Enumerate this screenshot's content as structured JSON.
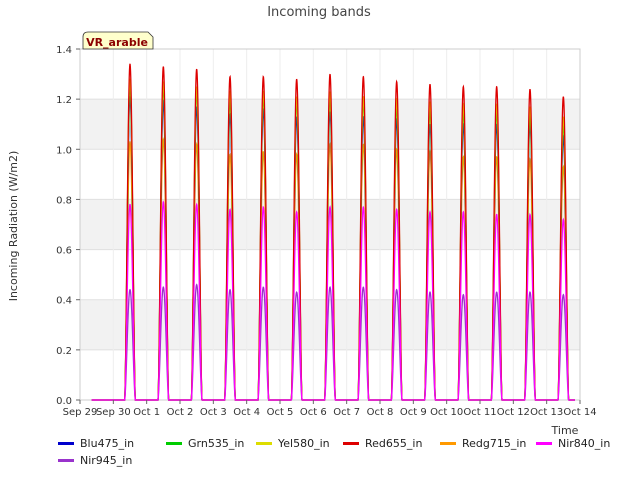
{
  "chart_data": {
    "type": "line",
    "title": "Incoming bands",
    "xlabel": "Time",
    "ylabel": "Incoming Radiation (W/m2)",
    "annotation": "VR_arable",
    "x_ticks": [
      "Sep 29",
      "Sep 30",
      "Oct 1",
      "Oct 2",
      "Oct 3",
      "Oct 4",
      "Oct 5",
      "Oct 6",
      "Oct 7",
      "Oct 8",
      "Oct 9",
      "Oct 10",
      "Oct 11",
      "Oct 12",
      "Oct 13",
      "Oct 14"
    ],
    "y_ticks": [
      "0.0",
      "0.2",
      "0.4",
      "0.6",
      "0.8",
      "1.0",
      "1.2",
      "1.4"
    ],
    "xlim": [
      "Sep 29",
      "Oct 14"
    ],
    "ylim": [
      0,
      1.4
    ],
    "grid": "horizontal bands",
    "legend_position": "bottom",
    "day_peak_dates": [
      "Sep 30",
      "Oct 1",
      "Oct 2",
      "Oct 3",
      "Oct 4",
      "Oct 5",
      "Oct 6",
      "Oct 7",
      "Oct 8",
      "Oct 9",
      "Oct 10",
      "Oct 11",
      "Oct 12",
      "Oct 13"
    ],
    "series": [
      {
        "name": "Blu475_in",
        "color": "#0000cc",
        "values": [
          1.21,
          1.19,
          1.17,
          1.14,
          1.16,
          1.13,
          1.15,
          1.13,
          1.12,
          1.1,
          1.1,
          1.1,
          1.1,
          1.05
        ]
      },
      {
        "name": "Grn535_in",
        "color": "#00cc00",
        "values": [
          1.26,
          1.25,
          1.23,
          1.2,
          1.21,
          1.19,
          1.21,
          1.19,
          1.17,
          1.16,
          1.15,
          1.15,
          1.14,
          1.1
        ]
      },
      {
        "name": "Yel580_in",
        "color": "#dddd00",
        "values": [
          1.28,
          1.27,
          1.25,
          1.23,
          1.23,
          1.21,
          1.23,
          1.21,
          1.2,
          1.19,
          1.18,
          1.18,
          1.17,
          1.13
        ]
      },
      {
        "name": "Red655_in",
        "color": "#dd0000",
        "values": [
          1.34,
          1.33,
          1.32,
          1.29,
          1.29,
          1.28,
          1.3,
          1.29,
          1.27,
          1.26,
          1.25,
          1.25,
          1.24,
          1.21
        ]
      },
      {
        "name": "Redg715_in",
        "color": "#ff9900",
        "values": [
          1.03,
          1.04,
          1.02,
          0.98,
          0.99,
          0.98,
          1.02,
          1.02,
          1.0,
          0.99,
          0.97,
          0.97,
          0.96,
          0.93
        ]
      },
      {
        "name": "Nir840_in",
        "color": "#ff00ff",
        "values": [
          0.78,
          0.79,
          0.78,
          0.76,
          0.77,
          0.75,
          0.77,
          0.77,
          0.76,
          0.75,
          0.75,
          0.74,
          0.74,
          0.72
        ]
      },
      {
        "name": "Nir945_in",
        "color": "#9933cc",
        "values": [
          0.44,
          0.45,
          0.46,
          0.44,
          0.45,
          0.43,
          0.45,
          0.45,
          0.44,
          0.43,
          0.42,
          0.43,
          0.43,
          0.42
        ]
      }
    ]
  }
}
